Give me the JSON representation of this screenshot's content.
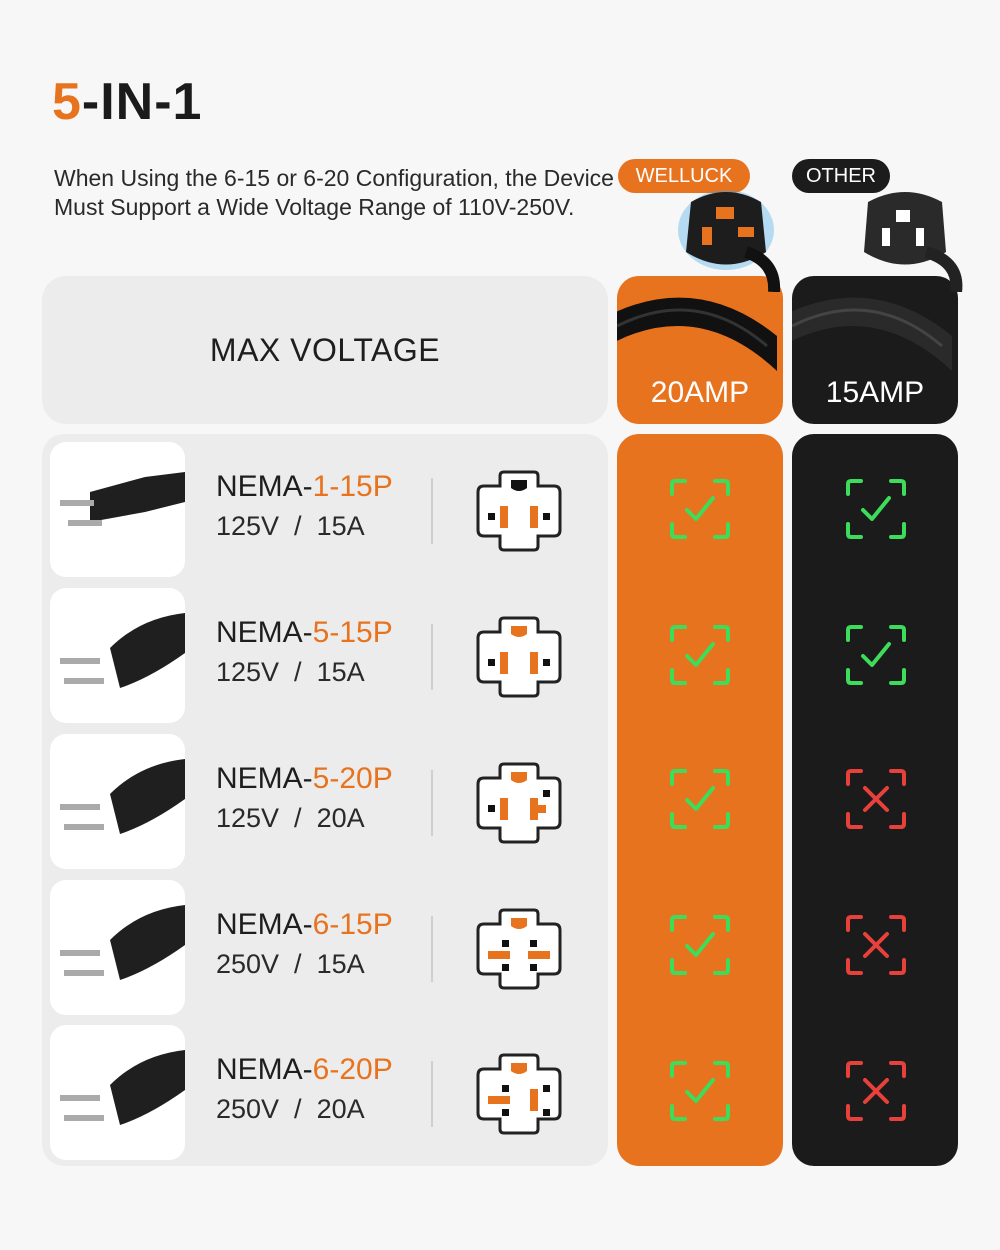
{
  "title": {
    "number": "5",
    "rest": "-IN-1"
  },
  "description": "When Using the 6-15 or 6-20 Configuration, the Device Must Support a Wide Voltage Range of 110V-250V.",
  "header": {
    "label": "MAX VOLTAGE",
    "col_welluck": {
      "badge": "WELLUCK",
      "amp": "20AMP"
    },
    "col_other": {
      "badge": "OTHER",
      "amp": "15AMP"
    }
  },
  "rows": [
    {
      "prefix": "NEMA-",
      "model": "1-15P",
      "spec": "125V  /  15A",
      "welluck": "check",
      "other": "check"
    },
    {
      "prefix": "NEMA-",
      "model": "5-15P",
      "spec": "125V  /  15A",
      "welluck": "check",
      "other": "check"
    },
    {
      "prefix": "NEMA-",
      "model": "5-20P",
      "spec": "125V  /  20A",
      "welluck": "check",
      "other": "cross"
    },
    {
      "prefix": "NEMA-",
      "model": "6-15P",
      "spec": "250V  /  15A",
      "welluck": "check",
      "other": "cross"
    },
    {
      "prefix": "NEMA-",
      "model": "6-20P",
      "spec": "250V  /  20A",
      "welluck": "check",
      "other": "cross"
    }
  ],
  "colors": {
    "accent": "#e8731f",
    "dark": "#1b1b1b",
    "check": "#3ddc5a",
    "cross": "#e8403a"
  }
}
